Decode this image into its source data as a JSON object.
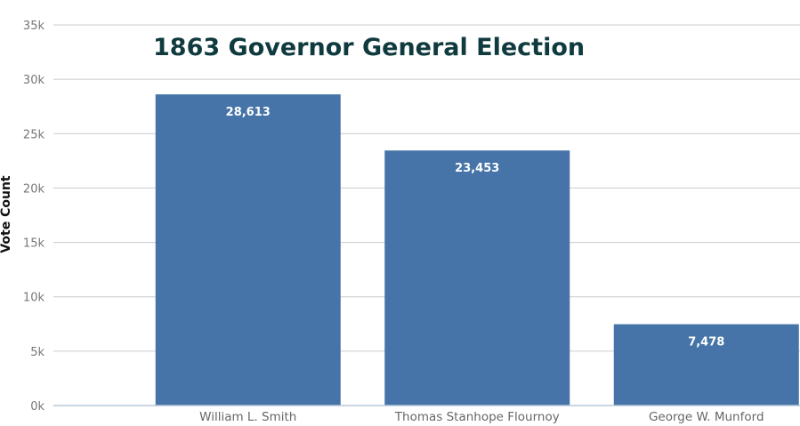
{
  "chart_data": {
    "type": "bar",
    "title": "1863 Governor General Election",
    "xlabel": "",
    "ylabel": "Vote Count",
    "categories": [
      "William L. Smith",
      "Thomas Stanhope Flournoy",
      "George W. Munford"
    ],
    "values": [
      28613,
      23453,
      7478
    ],
    "value_labels": [
      "28,613",
      "23,453",
      "7,478"
    ],
    "ylim": [
      0,
      35000
    ],
    "yticks": [
      0,
      5000,
      10000,
      15000,
      20000,
      25000,
      30000,
      35000
    ],
    "ytick_labels": [
      "0k",
      "5k",
      "10k",
      "15k",
      "20k",
      "25k",
      "30k",
      "35k"
    ],
    "grid": true,
    "legend": "none",
    "bar_color": "#4674a8"
  }
}
